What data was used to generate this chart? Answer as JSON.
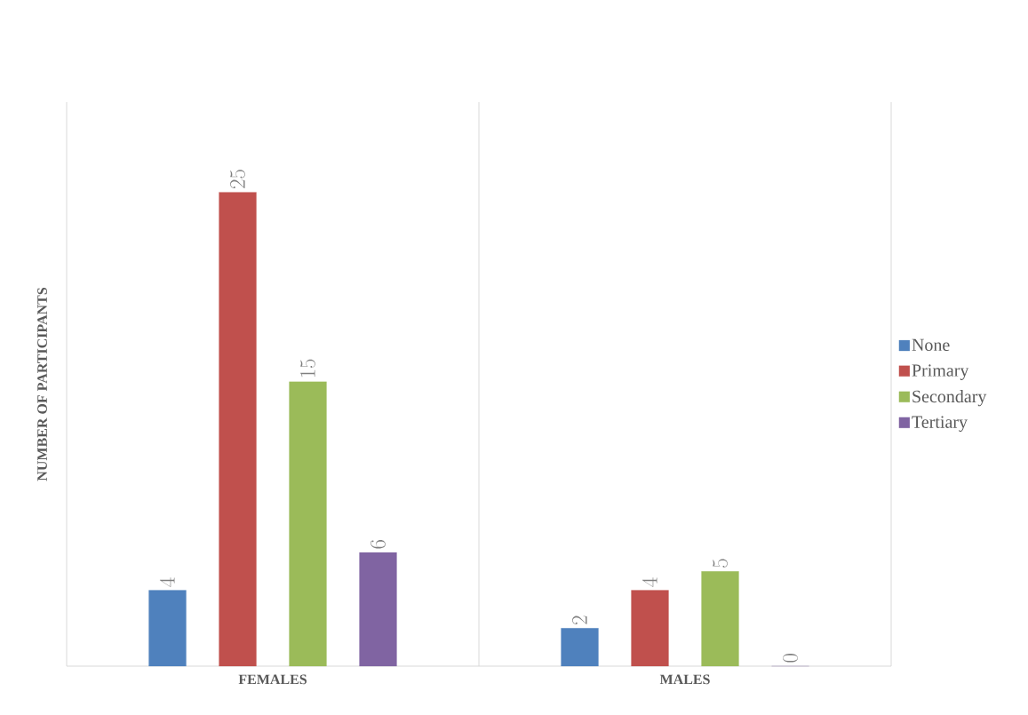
{
  "chart_data": {
    "type": "bar",
    "ylabel": "NUMBER OF PARTICIPANTS",
    "categories": [
      "FEMALES",
      "MALES"
    ],
    "series": [
      {
        "name": "None",
        "color": "#4f81bd",
        "values": [
          4,
          2
        ]
      },
      {
        "name": "Primary",
        "color": "#c0504d",
        "values": [
          25,
          4
        ]
      },
      {
        "name": "Secondary",
        "color": "#9bbb59",
        "values": [
          15,
          5
        ]
      },
      {
        "name": "Tertiary",
        "color": "#8064a2",
        "values": [
          6,
          0
        ]
      }
    ],
    "data_labels": true,
    "legend": "right"
  }
}
